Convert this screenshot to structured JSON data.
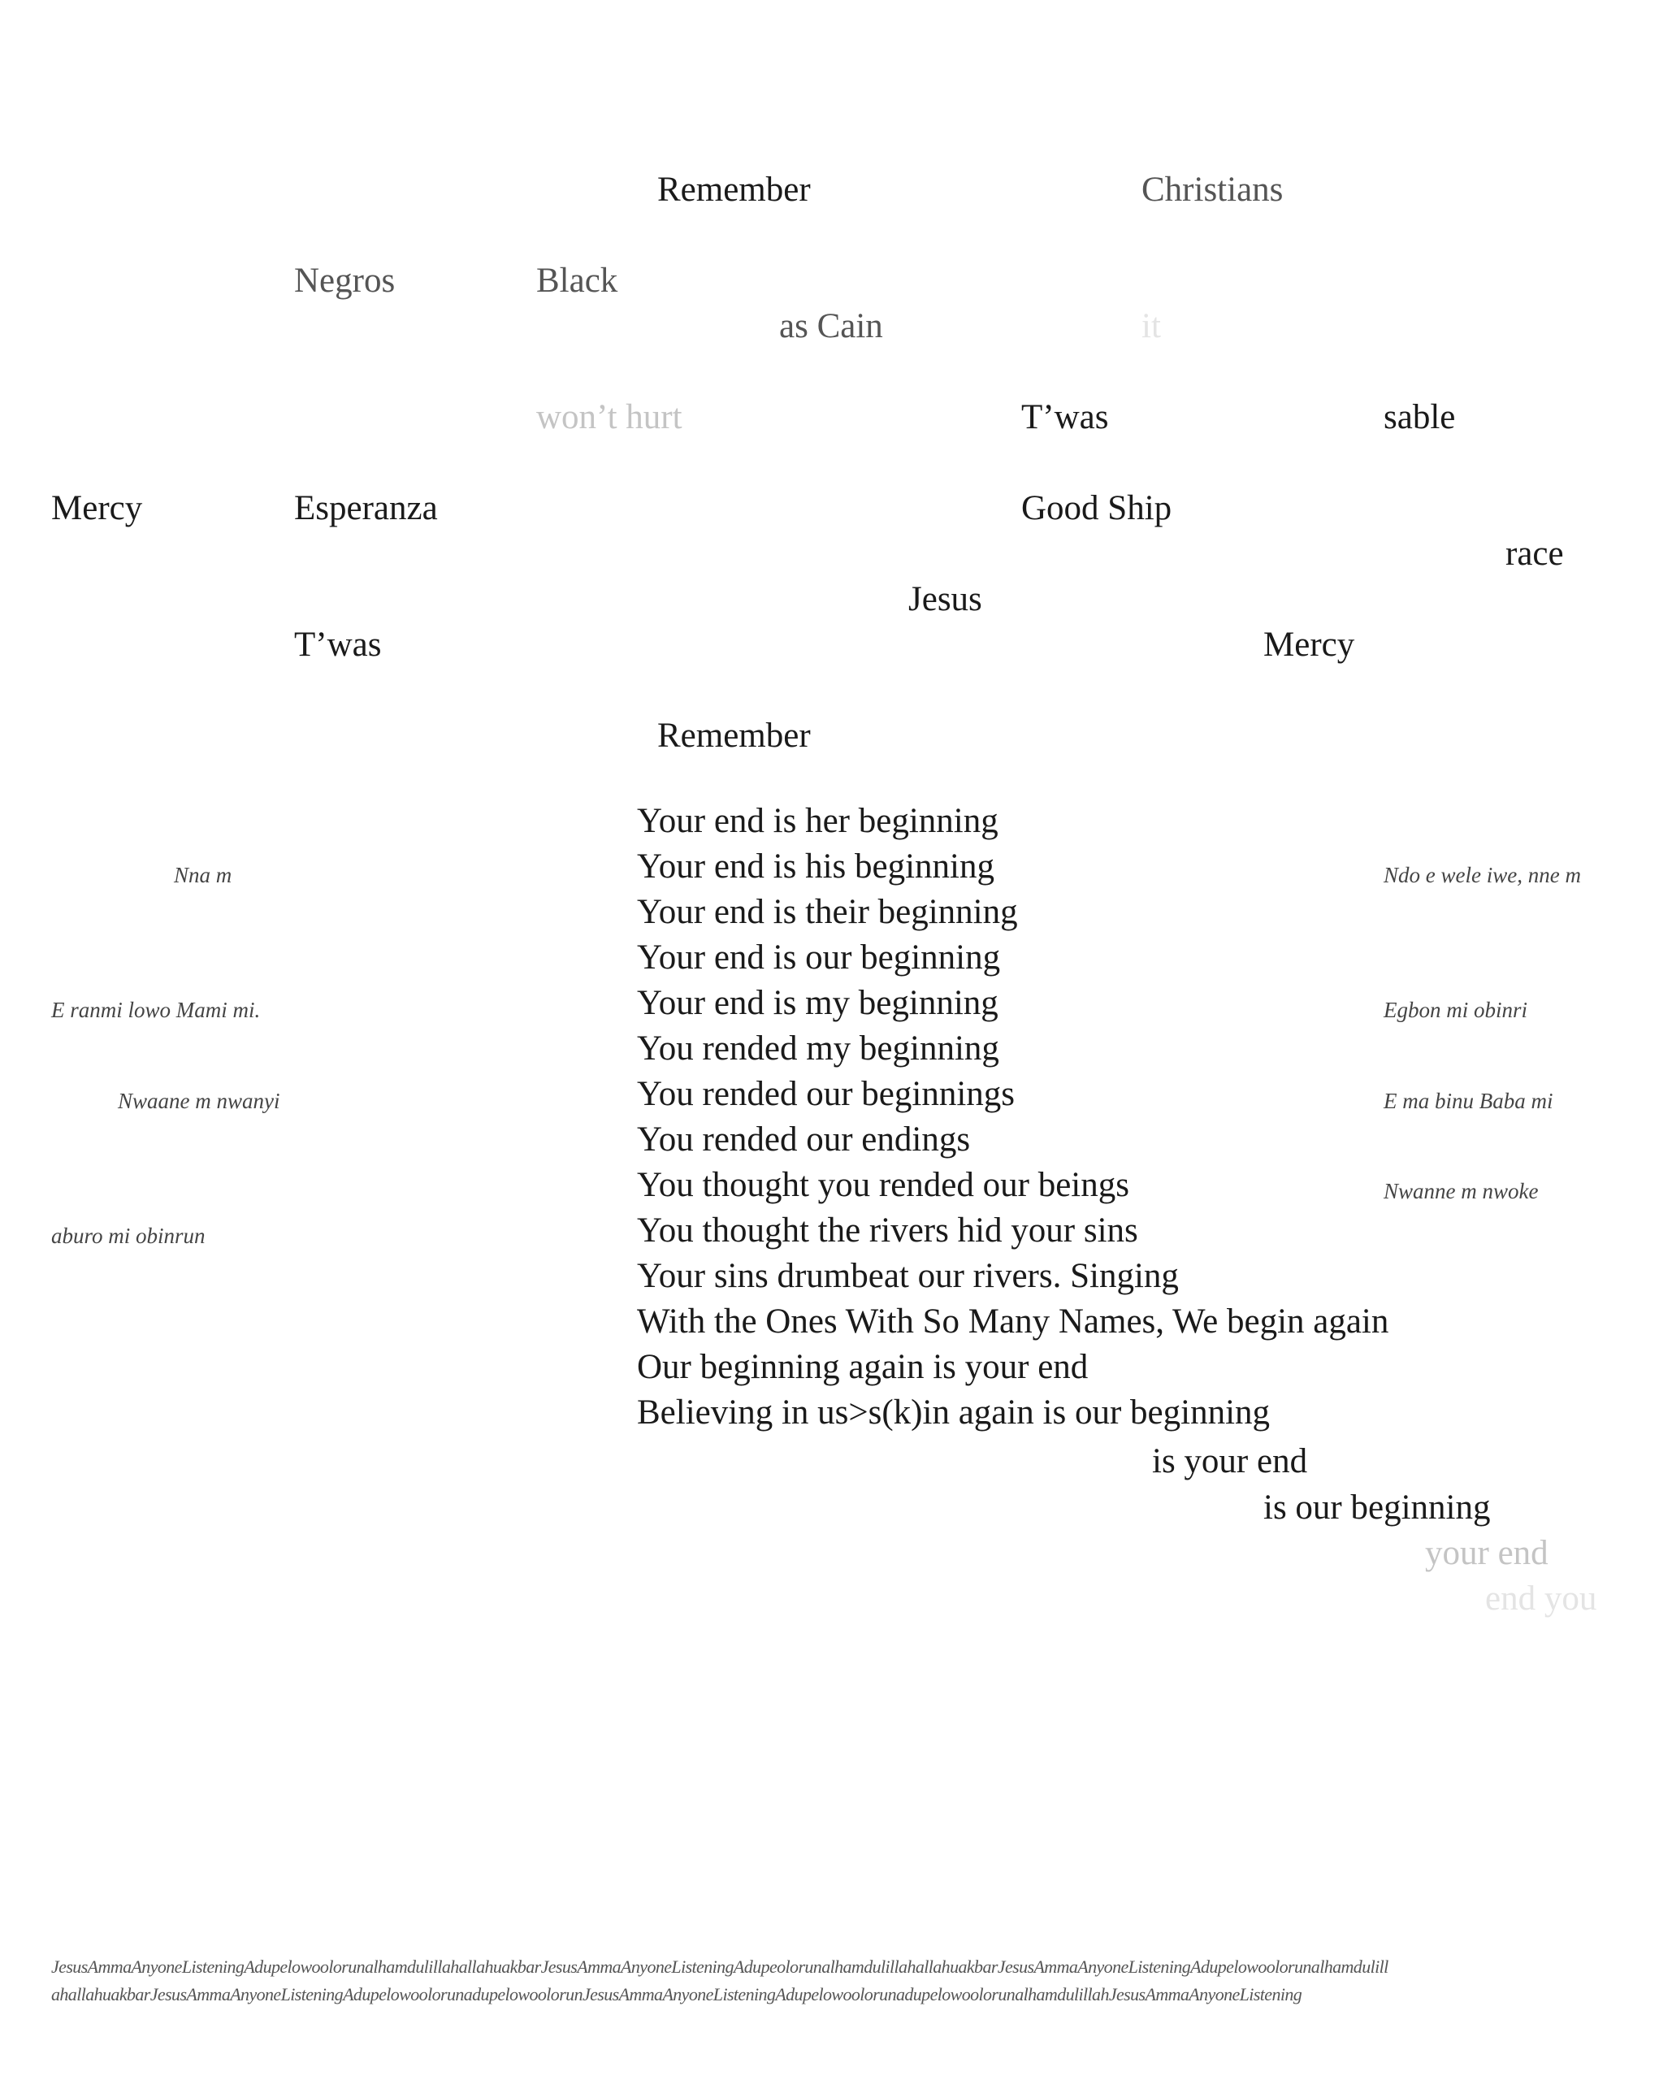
{
  "scattered_words": [
    "Remember",
    "Christians",
    "Negros",
    "Black",
    "as Cain",
    "it",
    "won’t hurt",
    "T’was",
    "sable",
    "Mercy",
    "Esperanza",
    "Good Ship",
    "race",
    "Jesus",
    "T’was",
    "Mercy",
    "Remember"
  ],
  "poem_lines": [
    "Your end is her beginning",
    "Your end is his beginning",
    "Your end is their beginning",
    "Your end is our beginning",
    "Your end is my beginning",
    "You rended my beginning",
    "You rended our beginnings",
    "You rended our endings",
    "You thought you rended our beings",
    "You thought the rivers hid your sins",
    "Your sins drumbeat our rivers. Singing",
    "With the Ones With So Many Names, We begin again",
    "Our beginning again is your end",
    "Believing in us>s(k)in again is our beginning"
  ],
  "cascade": [
    "is your end",
    "is our beginning",
    "your end",
    "end you"
  ],
  "side_notes": [
    "Nna m",
    "Ndo e  wele iwe, nne m",
    "E ranmi lowo Mami mi.",
    "Egbon mi obinri",
    "Nwaane m nwanyi",
    "E ma binu Baba mi",
    "Nwanne m nwoke",
    "aburo mi obinrun"
  ],
  "footer": [
    "JesusAmmaAnyoneListeningAdupelowoolorunalhamdulillahallahuakbarJesusAmmaAnyoneListeningAdupeolorunalhamdulillahallahuakbarJesusAmmaAnyoneListeningAdupelowoolorunalhamdulill",
    "ahallahuakbarJesusAmmaAnyoneListeningAdupelowoolorunadupelowoolorunJesusAmmaAnyoneListeningAdupelowoolorunadupelowoolorunalhamdulillahJesusAmmaAnyoneListening"
  ]
}
